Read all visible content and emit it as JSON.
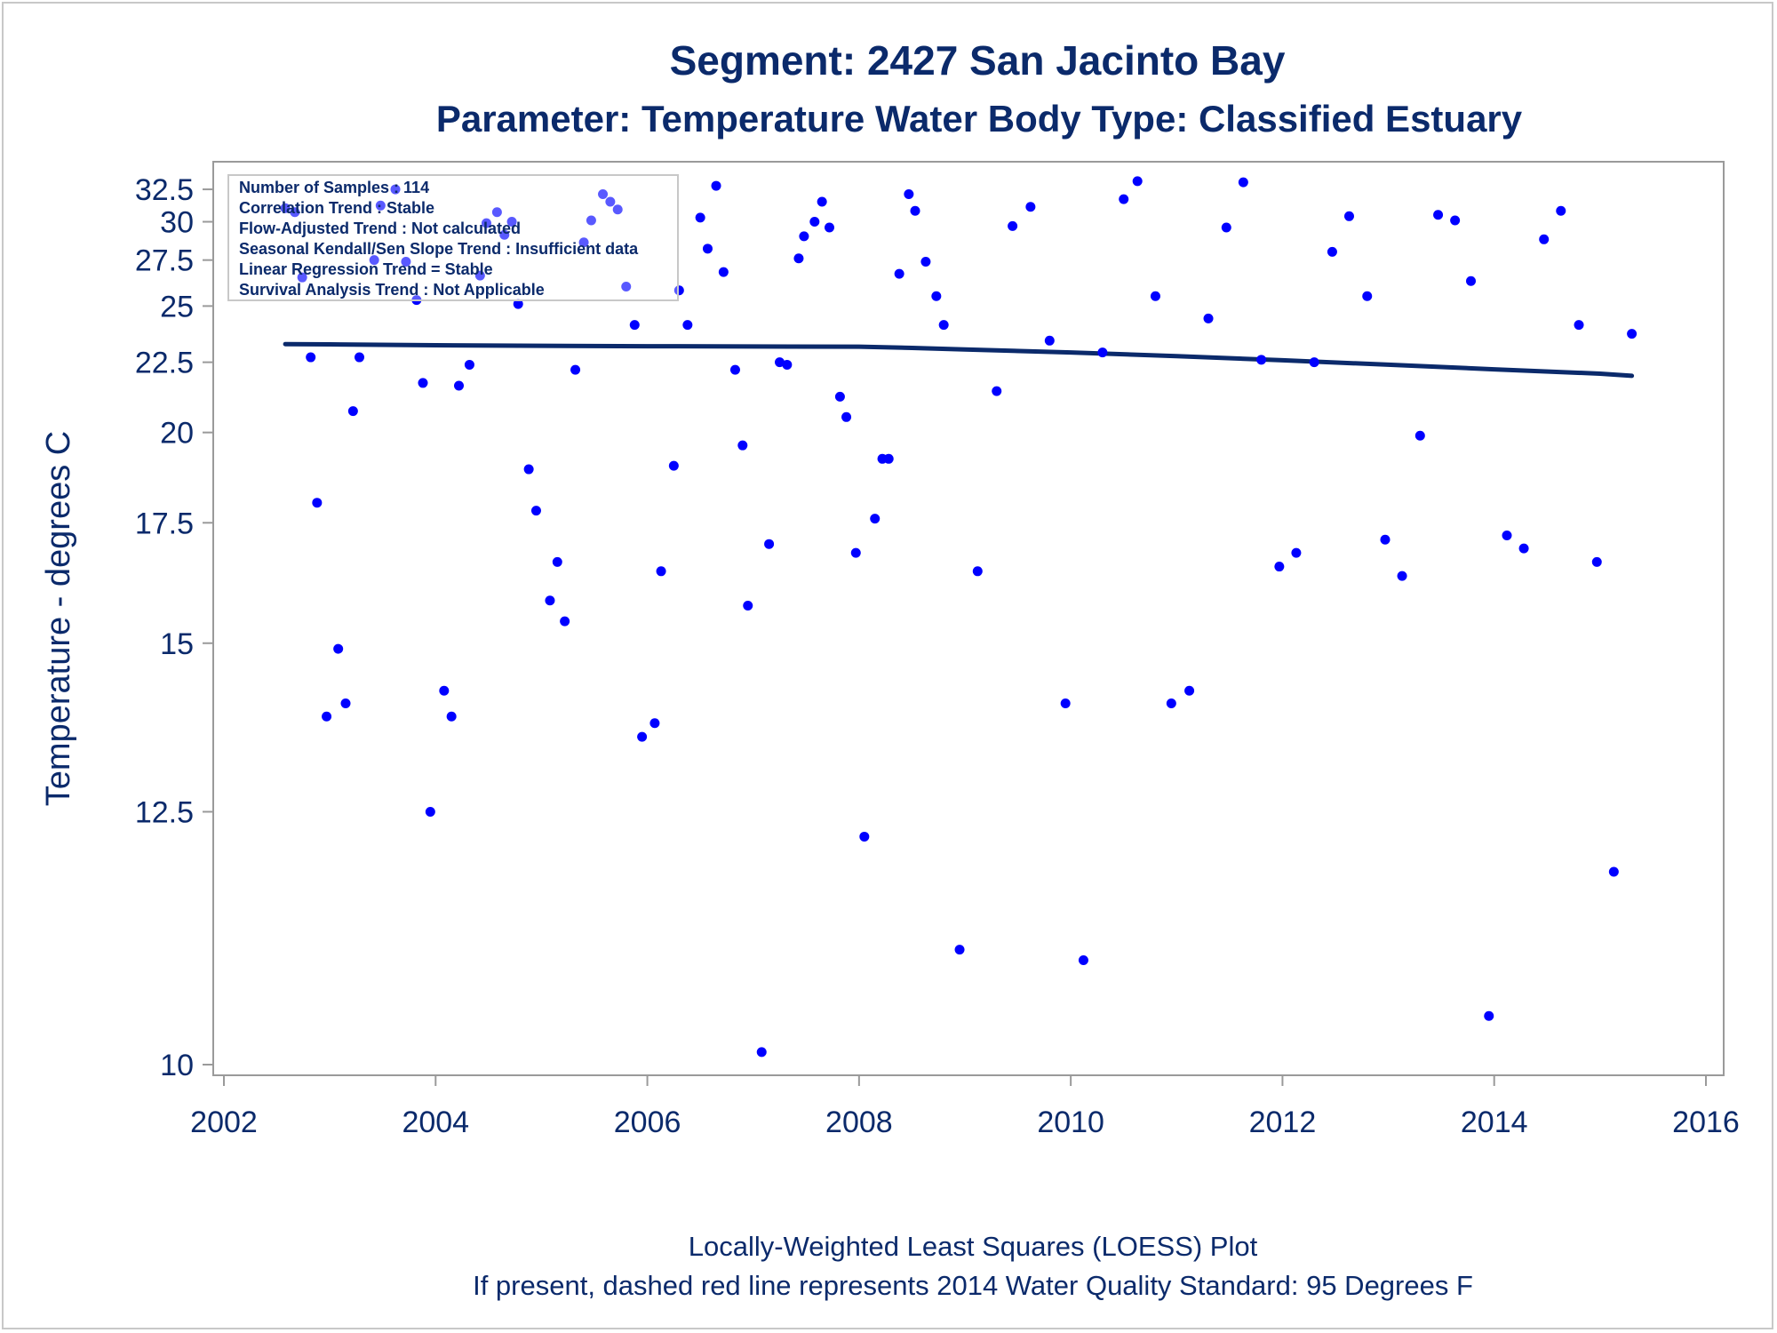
{
  "chart_data": {
    "type": "scatter",
    "title": "Segment: 2427  San Jacinto Bay",
    "subtitle": "Parameter: Temperature   Water Body Type: Classified Estuary",
    "ylabel": "Temperature - degrees C",
    "xlabel": "",
    "xlim": [
      2002,
      2016
    ],
    "ylim": [
      10,
      33.5
    ],
    "xticks": [
      2002,
      2004,
      2006,
      2008,
      2010,
      2012,
      2014,
      2016
    ],
    "yticks": [
      10,
      12.5,
      15,
      17.5,
      20,
      22.5,
      25,
      27.5,
      30,
      32.5
    ],
    "ytick_labels": [
      "10",
      "12.5",
      "15",
      "17.5",
      "20",
      "22.5",
      "25",
      "27.5",
      "30",
      "32.5"
    ],
    "xtick_labels": [
      "2002",
      "2004",
      "2006",
      "2008",
      "2010",
      "2012",
      "2014",
      "2016"
    ],
    "grid": false,
    "stats_box": [
      "Number of Samples : 114",
      "Correlation Trend : Stable",
      "Flow-Adjusted Trend : Not calculated",
      "Seasonal Kendall/Sen Slope Trend : Insufficient data",
      "Linear Regression Trend = Stable",
      "Survival Analysis Trend : Not Applicable"
    ],
    "footnotes": [
      "Locally-Weighted Least Squares (LOESS) Plot",
      "If present, dashed red line represents 2014 Water Quality Standard: 95   Degrees F"
    ],
    "colors": {
      "points": "#0000ff",
      "trend": "#0b2a6b",
      "text": "#0b2a6b",
      "axis": "#9a9a9a"
    },
    "series": [
      {
        "kind": "points",
        "x": [
          2002.58,
          2002.67,
          2002.74,
          2002.82,
          2002.88,
          2002.97,
          2003.08,
          2003.15,
          2003.22,
          2003.28,
          2003.42,
          2003.48,
          2003.62,
          2003.72,
          2003.82,
          2003.88,
          2003.95,
          2004.08,
          2004.15,
          2004.22,
          2004.32,
          2004.42,
          2004.48,
          2004.58,
          2004.65,
          2004.72,
          2004.78,
          2004.88,
          2004.95,
          2005.08,
          2005.15,
          2005.22,
          2005.32,
          2005.4,
          2005.47,
          2005.58,
          2005.65,
          2005.72,
          2005.8,
          2005.88,
          2005.95,
          2006.07,
          2006.13,
          2006.25,
          2006.3,
          2006.38,
          2006.5,
          2006.57,
          2006.65,
          2006.72,
          2006.83,
          2006.9,
          2006.95,
          2007.08,
          2007.15,
          2007.25,
          2007.32,
          2007.43,
          2007.48,
          2007.58,
          2007.65,
          2007.72,
          2007.82,
          2007.88,
          2007.97,
          2008.05,
          2008.15,
          2008.22,
          2008.28,
          2008.38,
          2008.47,
          2008.53,
          2008.63,
          2008.73,
          2008.8,
          2008.95,
          2009.12,
          2009.3,
          2009.45,
          2009.62,
          2009.8,
          2009.95,
          2010.12,
          2010.3,
          2010.5,
          2010.63,
          2010.8,
          2010.95,
          2011.12,
          2011.3,
          2011.47,
          2011.63,
          2011.8,
          2011.97,
          2012.13,
          2012.3,
          2012.47,
          2012.63,
          2012.8,
          2012.97,
          2013.13,
          2013.3,
          2013.47,
          2013.63,
          2013.78,
          2013.95,
          2014.12,
          2014.28,
          2014.47,
          2014.63,
          2014.8,
          2014.97,
          2015.13,
          2015.3
        ],
        "y": [
          31.0,
          30.7,
          26.5,
          22.7,
          18.0,
          13.8,
          14.9,
          14.0,
          20.7,
          22.7,
          27.5,
          31.2,
          32.5,
          27.4,
          25.3,
          21.7,
          12.5,
          14.2,
          13.8,
          21.6,
          22.4,
          26.6,
          29.9,
          30.7,
          29.1,
          30.0,
          25.1,
          18.9,
          17.8,
          15.8,
          16.6,
          15.4,
          22.2,
          28.6,
          30.1,
          32.1,
          31.5,
          30.9,
          26.0,
          24.1,
          13.5,
          13.7,
          16.4,
          19.0,
          25.8,
          24.1,
          30.3,
          28.2,
          32.8,
          26.8,
          22.2,
          19.6,
          15.7,
          10.1,
          17.0,
          22.5,
          22.4,
          27.6,
          29.0,
          30.0,
          31.5,
          29.6,
          21.2,
          20.5,
          16.8,
          12.2,
          17.6,
          19.2,
          19.2,
          26.7,
          32.1,
          30.8,
          27.4,
          25.5,
          24.1,
          11.0,
          16.4,
          21.4,
          29.7,
          31.1,
          23.4,
          14.0,
          10.9,
          22.9,
          31.7,
          33.2,
          25.5,
          14.0,
          14.2,
          24.4,
          29.6,
          33.1,
          22.6,
          16.5,
          16.8,
          22.5,
          28.0,
          30.4,
          25.5,
          17.1,
          16.3,
          19.9,
          30.5,
          30.1,
          26.3,
          10.4,
          17.2,
          16.9,
          28.8,
          30.8,
          24.1,
          16.6,
          11.8,
          23.7
        ]
      },
      {
        "kind": "loess",
        "x": [
          2002.58,
          2003.0,
          2004.0,
          2005.0,
          2006.0,
          2007.0,
          2008.0,
          2008.5,
          2009.0,
          2010.0,
          2011.0,
          2012.0,
          2013.0,
          2014.0,
          2015.0,
          2015.3
        ],
        "y": [
          23.25,
          23.24,
          23.2,
          23.18,
          23.16,
          23.15,
          23.14,
          23.09,
          23.02,
          22.9,
          22.75,
          22.58,
          22.4,
          22.22,
          22.05,
          21.97
        ]
      }
    ]
  }
}
